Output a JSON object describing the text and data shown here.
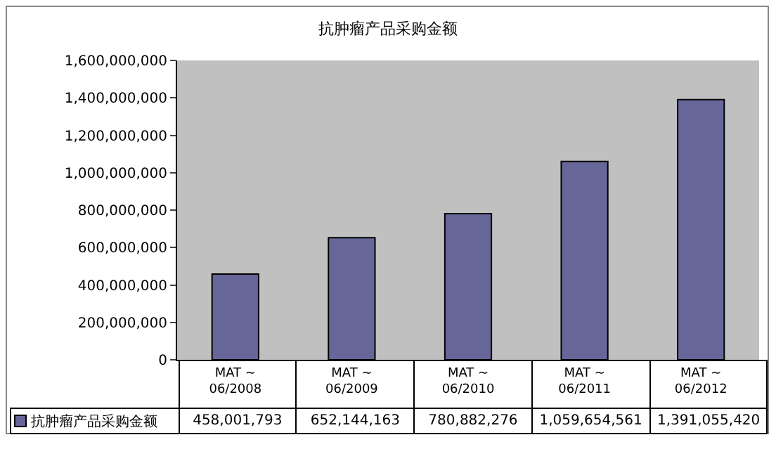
{
  "chart_data": {
    "type": "bar",
    "title": "抗肿瘤产品采购金额",
    "categories": [
      "MAT ~\n06/2008",
      "MAT ~\n06/2009",
      "MAT ~\n06/2010",
      "MAT ~\n06/2011",
      "MAT ~\n06/2012"
    ],
    "series": [
      {
        "name": "抗肿瘤产品采购金额",
        "color": "#666699",
        "values": [
          458001793,
          652144163,
          780882276,
          1059654561,
          1391055420
        ],
        "value_labels": [
          "458,001,793",
          "652,144,163",
          "780,882,276",
          "1,059,654,561",
          "1,391,055,420"
        ]
      }
    ],
    "ylim": [
      0,
      1600000000
    ],
    "yticks": [
      0,
      {
        "value": 200000000,
        "label": "200,000,000"
      },
      {
        "value": 400000000,
        "label": "400,000,000"
      },
      {
        "value": 600000000,
        "label": "600,000,000"
      },
      {
        "value": 800000000,
        "label": "800,000,000"
      },
      {
        "value": 1000000000,
        "label": "1,000,000,000"
      },
      {
        "value": 1200000000,
        "label": "1,200,000,000"
      },
      {
        "value": 1400000000,
        "label": "1,400,000,000"
      },
      {
        "value": 1600000000,
        "label": "1,600,000,000"
      }
    ],
    "grid": false,
    "legend": "bottom"
  }
}
